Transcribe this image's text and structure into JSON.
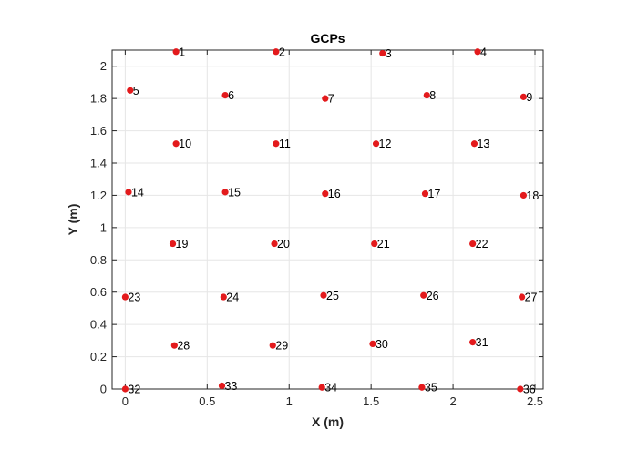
{
  "chart_data": {
    "type": "scatter",
    "title": "GCPs",
    "xlabel": "X (m)",
    "ylabel": "Y (m)",
    "xlim": [
      -0.08,
      2.55
    ],
    "ylim": [
      0,
      2.1
    ],
    "xticks": [
      0,
      0.5,
      1,
      1.5,
      2,
      2.5
    ],
    "xtick_labels": [
      "0",
      "0.5",
      "1",
      "1.5",
      "2",
      "2.5"
    ],
    "yticks": [
      0,
      0.2,
      0.4,
      0.6,
      0.8,
      1,
      1.2,
      1.4,
      1.6,
      1.8,
      2
    ],
    "ytick_labels": [
      "0",
      "0.2",
      "0.4",
      "0.6",
      "0.8",
      "1",
      "1.2",
      "1.4",
      "1.6",
      "1.8",
      "2"
    ],
    "grid": true,
    "marker_color": "#e31a1c",
    "points": [
      {
        "label": "1",
        "x": 0.31,
        "y": 2.09
      },
      {
        "label": "2",
        "x": 0.92,
        "y": 2.09
      },
      {
        "label": "3",
        "x": 1.57,
        "y": 2.08
      },
      {
        "label": "4",
        "x": 2.15,
        "y": 2.09
      },
      {
        "label": "5",
        "x": 0.03,
        "y": 1.85
      },
      {
        "label": "6",
        "x": 0.61,
        "y": 1.82
      },
      {
        "label": "7",
        "x": 1.22,
        "y": 1.8
      },
      {
        "label": "8",
        "x": 1.84,
        "y": 1.82
      },
      {
        "label": "9",
        "x": 2.43,
        "y": 1.81
      },
      {
        "label": "10",
        "x": 0.31,
        "y": 1.52
      },
      {
        "label": "11",
        "x": 0.92,
        "y": 1.52
      },
      {
        "label": "12",
        "x": 1.53,
        "y": 1.52
      },
      {
        "label": "13",
        "x": 2.13,
        "y": 1.52
      },
      {
        "label": "14",
        "x": 0.02,
        "y": 1.22
      },
      {
        "label": "15",
        "x": 0.61,
        "y": 1.22
      },
      {
        "label": "16",
        "x": 1.22,
        "y": 1.21
      },
      {
        "label": "17",
        "x": 1.83,
        "y": 1.21
      },
      {
        "label": "18",
        "x": 2.43,
        "y": 1.2
      },
      {
        "label": "19",
        "x": 0.29,
        "y": 0.9
      },
      {
        "label": "20",
        "x": 0.91,
        "y": 0.9
      },
      {
        "label": "21",
        "x": 1.52,
        "y": 0.9
      },
      {
        "label": "22",
        "x": 2.12,
        "y": 0.9
      },
      {
        "label": "23",
        "x": 0.0,
        "y": 0.57
      },
      {
        "label": "24",
        "x": 0.6,
        "y": 0.57
      },
      {
        "label": "25",
        "x": 1.21,
        "y": 0.58
      },
      {
        "label": "26",
        "x": 1.82,
        "y": 0.58
      },
      {
        "label": "27",
        "x": 2.42,
        "y": 0.57
      },
      {
        "label": "28",
        "x": 0.3,
        "y": 0.27
      },
      {
        "label": "29",
        "x": 0.9,
        "y": 0.27
      },
      {
        "label": "30",
        "x": 1.51,
        "y": 0.28
      },
      {
        "label": "31",
        "x": 2.12,
        "y": 0.29
      },
      {
        "label": "32",
        "x": 0.0,
        "y": 0.0
      },
      {
        "label": "33",
        "x": 0.59,
        "y": 0.02
      },
      {
        "label": "34",
        "x": 1.2,
        "y": 0.01
      },
      {
        "label": "35",
        "x": 1.81,
        "y": 0.01
      },
      {
        "label": "36",
        "x": 2.41,
        "y": 0.0
      }
    ]
  }
}
